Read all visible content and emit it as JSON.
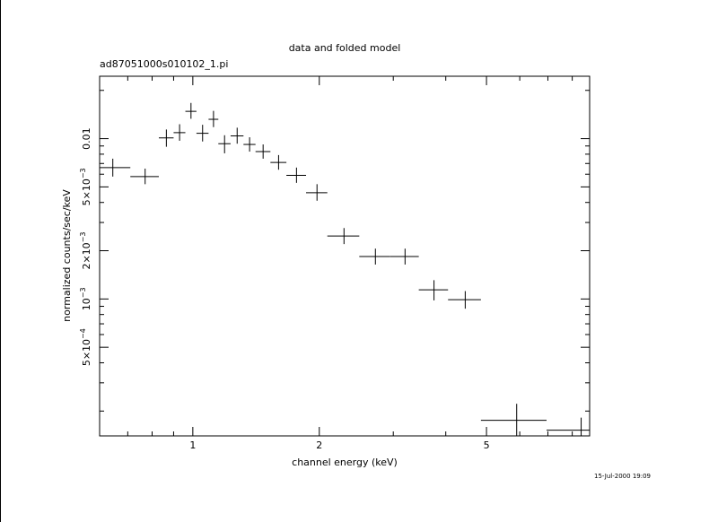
{
  "chart_data": {
    "type": "scatter",
    "title": "data and folded model",
    "subtitle": "ad87051000s010102_1.pi",
    "xlabel": "channel energy (keV)",
    "ylabel": "normalized counts/sec/keV",
    "timestamp": "15-Jul-2000 19:09",
    "x_scale": "log",
    "y_scale": "log",
    "xlim": [
      0.6,
      8.8
    ],
    "ylim": [
      0.00014,
      0.0245
    ],
    "x_ticks": [
      {
        "value": 1,
        "label": "1"
      },
      {
        "value": 2,
        "label": "2"
      },
      {
        "value": 5,
        "label": "5"
      }
    ],
    "y_ticks": [
      {
        "value": 0.01,
        "mant": "0.01",
        "exp": ""
      },
      {
        "value": 0.005,
        "mant": "5×10",
        "exp": "−3"
      },
      {
        "value": 0.002,
        "mant": "2×10",
        "exp": "−3"
      },
      {
        "value": 0.001,
        "mant": "10",
        "exp": "−3"
      },
      {
        "value": 0.0005,
        "mant": "5×10",
        "exp": "−4"
      }
    ],
    "grid": false,
    "legend": "none",
    "color": "#000000",
    "points": [
      {
        "x": 0.645,
        "xlo": 0.58,
        "xhi": 0.71,
        "y": 0.0066,
        "ylo": 0.0058,
        "yhi": 0.0075
      },
      {
        "x": 0.77,
        "xlo": 0.71,
        "xhi": 0.83,
        "y": 0.0058,
        "ylo": 0.0052,
        "yhi": 0.0065
      },
      {
        "x": 0.865,
        "xlo": 0.83,
        "xhi": 0.9,
        "y": 0.0101,
        "ylo": 0.0089,
        "yhi": 0.0114
      },
      {
        "x": 0.93,
        "xlo": 0.9,
        "xhi": 0.96,
        "y": 0.0109,
        "ylo": 0.0097,
        "yhi": 0.0123
      },
      {
        "x": 0.99,
        "xlo": 0.96,
        "xhi": 1.02,
        "y": 0.0148,
        "ylo": 0.0133,
        "yhi": 0.0167
      },
      {
        "x": 1.055,
        "xlo": 1.02,
        "xhi": 1.09,
        "y": 0.0108,
        "ylo": 0.0096,
        "yhi": 0.0122
      },
      {
        "x": 1.12,
        "xlo": 1.09,
        "xhi": 1.15,
        "y": 0.0132,
        "ylo": 0.0118,
        "yhi": 0.0149
      },
      {
        "x": 1.19,
        "xlo": 1.15,
        "xhi": 1.23,
        "y": 0.0093,
        "ylo": 0.0081,
        "yhi": 0.0105
      },
      {
        "x": 1.275,
        "xlo": 1.23,
        "xhi": 1.32,
        "y": 0.0104,
        "ylo": 0.0093,
        "yhi": 0.0117
      },
      {
        "x": 1.365,
        "xlo": 1.32,
        "xhi": 1.41,
        "y": 0.0092,
        "ylo": 0.0083,
        "yhi": 0.0102
      },
      {
        "x": 1.47,
        "xlo": 1.41,
        "xhi": 1.53,
        "y": 0.0083,
        "ylo": 0.0075,
        "yhi": 0.0092
      },
      {
        "x": 1.6,
        "xlo": 1.53,
        "xhi": 1.67,
        "y": 0.0071,
        "ylo": 0.0064,
        "yhi": 0.0079
      },
      {
        "x": 1.765,
        "xlo": 1.67,
        "xhi": 1.86,
        "y": 0.0059,
        "ylo": 0.0053,
        "yhi": 0.0066
      },
      {
        "x": 1.975,
        "xlo": 1.86,
        "xhi": 2.09,
        "y": 0.0046,
        "ylo": 0.0041,
        "yhi": 0.0052
      },
      {
        "x": 2.29,
        "xlo": 2.09,
        "xhi": 2.49,
        "y": 0.00247,
        "ylo": 0.0022,
        "yhi": 0.00277
      },
      {
        "x": 2.72,
        "xlo": 2.49,
        "xhi": 2.95,
        "y": 0.00184,
        "ylo": 0.00164,
        "yhi": 0.00206
      },
      {
        "x": 3.2,
        "xlo": 2.95,
        "xhi": 3.45,
        "y": 0.00184,
        "ylo": 0.00164,
        "yhi": 0.00206
      },
      {
        "x": 3.75,
        "xlo": 3.45,
        "xhi": 4.05,
        "y": 0.00114,
        "ylo": 0.00098,
        "yhi": 0.00131
      },
      {
        "x": 4.45,
        "xlo": 4.05,
        "xhi": 4.85,
        "y": 0.00099,
        "ylo": 0.00087,
        "yhi": 0.00112
      },
      {
        "x": 5.9,
        "xlo": 4.85,
        "xhi": 6.95,
        "y": 0.000175,
        "ylo": 0.000138,
        "yhi": 0.000222
      },
      {
        "x": 8.4,
        "xlo": 6.95,
        "xhi": 9.0,
        "y": 0.000152,
        "ylo": 0.000128,
        "yhi": 0.000182
      }
    ]
  }
}
